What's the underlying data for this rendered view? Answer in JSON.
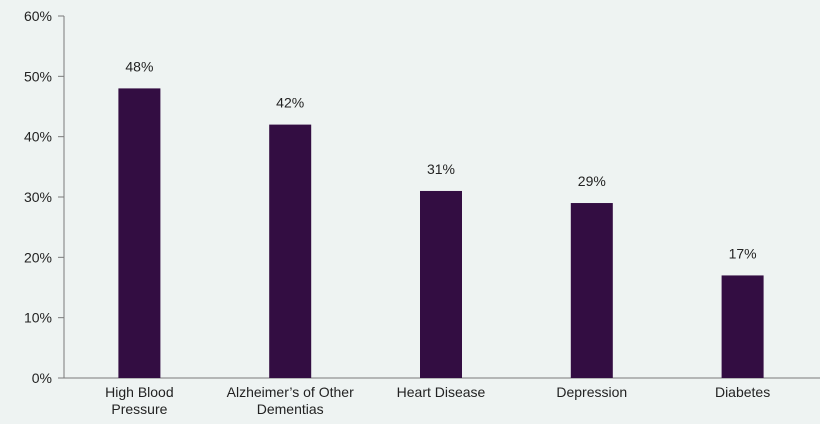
{
  "chart_data": {
    "type": "bar",
    "categories": [
      [
        "High Blood",
        "Pressure"
      ],
      [
        "Alzheimer’s of Other",
        "Dementias"
      ],
      [
        "Heart Disease"
      ],
      [
        "Depression"
      ],
      [
        "Diabetes"
      ]
    ],
    "values": [
      48,
      42,
      31,
      29,
      17
    ],
    "data_labels": [
      "48%",
      "42%",
      "31%",
      "29%",
      "17%"
    ],
    "ylim": [
      0,
      60
    ],
    "yticks": [
      0,
      10,
      20,
      30,
      40,
      50,
      60
    ],
    "ytick_labels": [
      "0%",
      "10%",
      "20%",
      "30%",
      "40%",
      "50%",
      "60%"
    ],
    "title": "",
    "xlabel": "",
    "ylabel": "",
    "grid": false,
    "colors": {
      "bar": "#330d42",
      "axis": "#7a7a7a",
      "background": "#eef3f2"
    }
  }
}
